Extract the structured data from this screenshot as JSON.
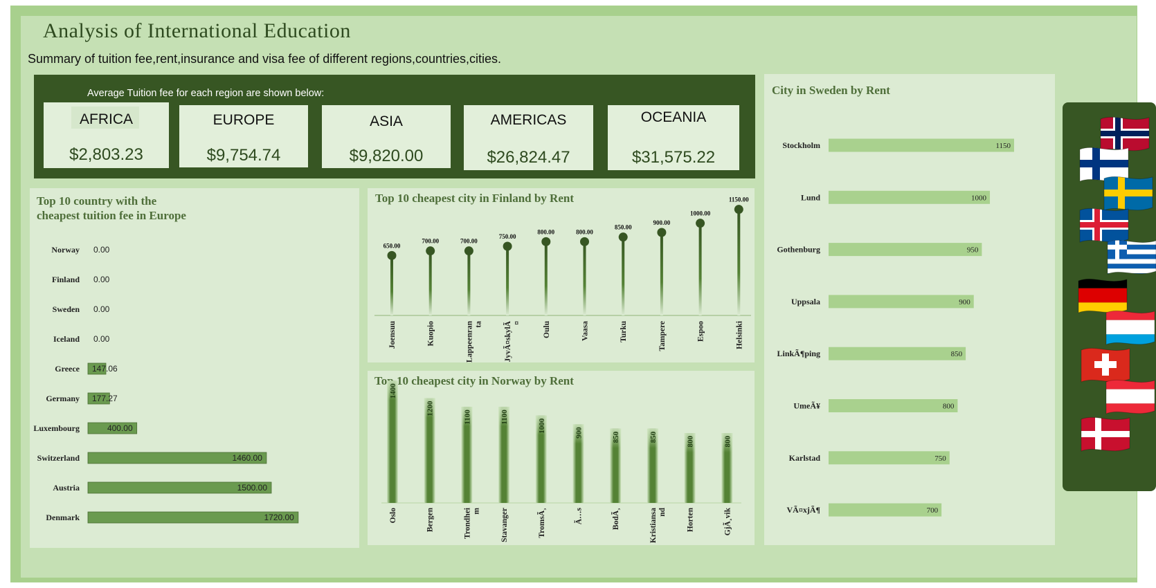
{
  "header": {
    "title": "Analysis of International Education",
    "subtitle": "Summary of tuition fee,rent,insurance and visa fee of different regions,countries,cities."
  },
  "kpis": {
    "note": "Average Tuition fee for each region are shown below:",
    "items": [
      {
        "region": "AFRICA",
        "value": "$2,803.23"
      },
      {
        "region": "EUROPE",
        "value": "$9,754.74"
      },
      {
        "region": "ASIA",
        "value": "$9,820.00"
      },
      {
        "region": "AMERICAS",
        "value": "$26,824.47"
      },
      {
        "region": "OCEANIA",
        "value": "$31,575.22"
      }
    ]
  },
  "chart_data": [
    {
      "type": "bar",
      "orientation": "horizontal",
      "title": "Top 10 country with the cheapest tuition fee in Europe",
      "title_lines": [
        "Top 10 country with the",
        "cheapest tuition fee in Europe"
      ],
      "categories": [
        "Norway",
        "Finland",
        "Sweden",
        "Iceland",
        "Greece",
        "Germany",
        "Luxembourg",
        "Switzerland",
        "Austria",
        "Denmark"
      ],
      "values": [
        0,
        0,
        0,
        0,
        147.06,
        177.27,
        400.0,
        1460.0,
        1500.0,
        1720.0
      ],
      "labels": [
        "0.00",
        "0.00",
        "0.00",
        "0.00",
        "147.06",
        "177.27",
        "400.00",
        "1460.00",
        "1500.00",
        "1720.00"
      ],
      "xlim": [
        0,
        1800
      ],
      "color": "#6a9a4f"
    },
    {
      "type": "lollipop",
      "title": "Top 10 cheapest city in Finland by Rent",
      "categories": [
        "Joensuu",
        "Kuopio",
        "Lappeenranta",
        "JyvÃ¤skylÃ¤",
        "Oulu",
        "Vaasa",
        "Turku",
        "Tampere",
        "Espoo",
        "Helsinki"
      ],
      "category_lines": [
        [
          "Joensuu"
        ],
        [
          "Kuopio"
        ],
        [
          "Lappeenran",
          "ta"
        ],
        [
          "JyvÃ¤skylÃ",
          "¤"
        ],
        [
          "Oulu"
        ],
        [
          "Vaasa"
        ],
        [
          "Turku"
        ],
        [
          "Tampere"
        ],
        [
          "Espoo"
        ],
        [
          "Helsinki"
        ]
      ],
      "values": [
        650,
        700,
        700,
        750,
        800,
        800,
        850,
        900,
        1000,
        1150
      ],
      "labels": [
        "650.00",
        "700.00",
        "700.00",
        "750.00",
        "800.00",
        "800.00",
        "850.00",
        "900.00",
        "1000.00",
        "1150.00"
      ],
      "ylim": [
        0,
        1200
      ],
      "color": "#375623"
    },
    {
      "type": "bar",
      "title": "Top 10 cheapest city in Norway by Rent",
      "categories": [
        "Oslo",
        "Bergen",
        "Trondheim",
        "Stavanger",
        "TromsÃ¸",
        "Ã…s",
        "BodÃ¸",
        "Kristiansand",
        "Horten",
        "GjÃ¸vik"
      ],
      "category_lines": [
        [
          "Oslo"
        ],
        [
          "Bergen"
        ],
        [
          "Trondhei",
          "m"
        ],
        [
          "Stavanger"
        ],
        [
          "TromsÃ¸"
        ],
        [
          "Ã…s"
        ],
        [
          "BodÃ¸"
        ],
        [
          "Kristiansa",
          "nd"
        ],
        [
          "Horten"
        ],
        [
          "GjÃ¸vik"
        ]
      ],
      "values": [
        1400,
        1200,
        1100,
        1100,
        1000,
        900,
        850,
        850,
        800,
        800
      ],
      "labels": [
        "1400",
        "1200",
        "1100",
        "1100",
        "1000",
        "900",
        "850",
        "850",
        "800",
        "800"
      ],
      "ylim": [
        0,
        1450
      ],
      "color": "#548235"
    },
    {
      "type": "bar",
      "orientation": "horizontal",
      "title": "City in Sweden by Rent",
      "categories": [
        "Stockholm",
        "Lund",
        "Gothenburg",
        "Uppsala",
        "LinkÃ¶ping",
        "UmeÃ¥",
        "Karlstad",
        "VÃ¤xjÃ¶"
      ],
      "values": [
        1150,
        1000,
        950,
        900,
        850,
        800,
        750,
        700
      ],
      "labels": [
        "1150",
        "1000",
        "950",
        "900",
        "850",
        "800",
        "750",
        "700"
      ],
      "xlim": [
        0,
        1400
      ],
      "color": "#a9d18e"
    }
  ],
  "flags": [
    {
      "country": "Norway",
      "icon": "norway-flag-icon",
      "colors": [
        "#ba0c2f",
        "#ffffff",
        "#00205b"
      ]
    },
    {
      "country": "Finland",
      "icon": "finland-flag-icon",
      "colors": [
        "#ffffff",
        "#003580"
      ]
    },
    {
      "country": "Sweden",
      "icon": "sweden-flag-icon",
      "colors": [
        "#006aa7",
        "#fecc00"
      ]
    },
    {
      "country": "Iceland",
      "icon": "iceland-flag-icon",
      "colors": [
        "#02529c",
        "#ffffff",
        "#dc1e35"
      ]
    },
    {
      "country": "Greece",
      "icon": "greece-flag-icon",
      "colors": [
        "#0d5eaf",
        "#ffffff"
      ]
    },
    {
      "country": "Germany",
      "icon": "germany-flag-icon",
      "colors": [
        "#000000",
        "#dd0000",
        "#ffce00"
      ]
    },
    {
      "country": "Luxembourg",
      "icon": "luxembourg-flag-icon",
      "colors": [
        "#ed2939",
        "#ffffff",
        "#00a1de"
      ]
    },
    {
      "country": "Switzerland",
      "icon": "switzerland-flag-icon",
      "colors": [
        "#da291c",
        "#ffffff"
      ]
    },
    {
      "country": "Austria",
      "icon": "austria-flag-icon",
      "colors": [
        "#ed2939",
        "#ffffff"
      ]
    },
    {
      "country": "Denmark",
      "icon": "denmark-flag-icon",
      "colors": [
        "#c8102e",
        "#ffffff"
      ]
    }
  ]
}
